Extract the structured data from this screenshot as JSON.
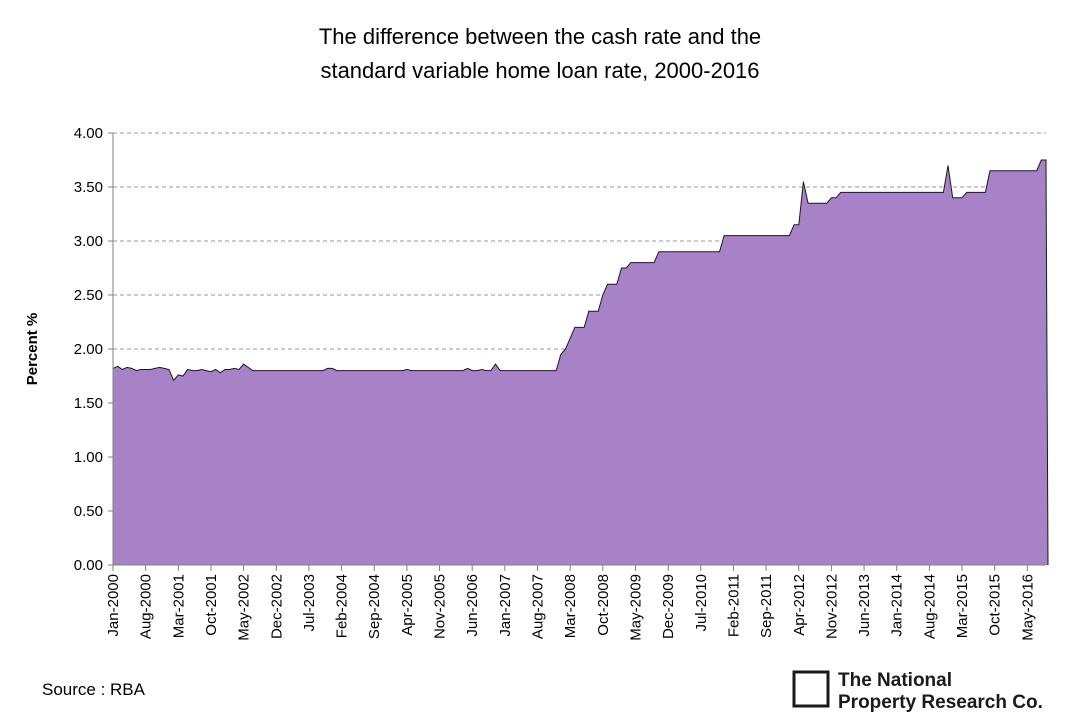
{
  "chart_data": {
    "type": "area",
    "title_lines": [
      "The difference between the cash rate and the",
      "standard variable home loan rate, 2000-2016"
    ],
    "xlabel": "",
    "ylabel": "Percent %",
    "ylim": [
      0,
      4
    ],
    "ytick_step": 0.5,
    "yticks": [
      "0.00",
      "0.50",
      "1.00",
      "1.50",
      "2.00",
      "2.50",
      "3.00",
      "3.50",
      "4.00"
    ],
    "grid": true,
    "grid_style": "dashed",
    "legend": "none",
    "x_start": "Jan-2000",
    "x_end": "Sep-2016",
    "xticks": [
      "Jan-2000",
      "Aug-2000",
      "Mar-2001",
      "Oct-2001",
      "May-2002",
      "Dec-2002",
      "Jul-2003",
      "Feb-2004",
      "Sep-2004",
      "Apr-2005",
      "Nov-2005",
      "Jun-2006",
      "Jan-2007",
      "Aug-2007",
      "Mar-2008",
      "Oct-2008",
      "May-2009",
      "Dec-2009",
      "Jul-2010",
      "Feb-2011",
      "Sep-2011",
      "Apr-2012",
      "Nov-2012",
      "Jun-2013",
      "Jan-2014",
      "Aug-2014",
      "Mar-2015",
      "Oct-2015",
      "May-2016"
    ],
    "fill_color": "#a782c6",
    "line_color": "#1a1a1a",
    "series": [
      {
        "points": [
          [
            "Jan-2000",
            1.82
          ],
          [
            "Feb-2000",
            1.84
          ],
          [
            "Mar-2000",
            1.81
          ],
          [
            "Apr-2000",
            1.83
          ],
          [
            "May-2000",
            1.82
          ],
          [
            "Jun-2000",
            1.8
          ],
          [
            "Jul-2000",
            1.81
          ],
          [
            "Aug-2000",
            1.81
          ],
          [
            "Sep-2000",
            1.81
          ],
          [
            "Oct-2000",
            1.82
          ],
          [
            "Nov-2000",
            1.83
          ],
          [
            "Dec-2000",
            1.82
          ],
          [
            "Jan-2001",
            1.81
          ],
          [
            "Feb-2001",
            1.71
          ],
          [
            "Mar-2001",
            1.76
          ],
          [
            "Apr-2001",
            1.75
          ],
          [
            "May-2001",
            1.81
          ],
          [
            "Jun-2001",
            1.8
          ],
          [
            "Jul-2001",
            1.8
          ],
          [
            "Aug-2001",
            1.81
          ],
          [
            "Sep-2001",
            1.8
          ],
          [
            "Oct-2001",
            1.79
          ],
          [
            "Nov-2001",
            1.81
          ],
          [
            "Dec-2001",
            1.78
          ],
          [
            "Jan-2002",
            1.81
          ],
          [
            "Feb-2002",
            1.81
          ],
          [
            "Mar-2002",
            1.82
          ],
          [
            "Apr-2002",
            1.81
          ],
          [
            "May-2002",
            1.86
          ],
          [
            "Jun-2002",
            1.83
          ],
          [
            "Jul-2002",
            1.8
          ],
          [
            "Oct-2003",
            1.8
          ],
          [
            "Nov-2003",
            1.82
          ],
          [
            "Dec-2003",
            1.82
          ],
          [
            "Jan-2004",
            1.8
          ],
          [
            "Mar-2005",
            1.8
          ],
          [
            "Apr-2005",
            1.81
          ],
          [
            "May-2005",
            1.8
          ],
          [
            "Apr-2006",
            1.8
          ],
          [
            "May-2006",
            1.82
          ],
          [
            "Jun-2006",
            1.8
          ],
          [
            "Jul-2006",
            1.8
          ],
          [
            "Aug-2006",
            1.81
          ],
          [
            "Sep-2006",
            1.8
          ],
          [
            "Oct-2006",
            1.8
          ],
          [
            "Nov-2006",
            1.86
          ],
          [
            "Dec-2006",
            1.8
          ],
          [
            "Dec-2007",
            1.8
          ],
          [
            "Jan-2008",
            1.95
          ],
          [
            "Feb-2008",
            2.0
          ],
          [
            "Mar-2008",
            2.1
          ],
          [
            "Apr-2008",
            2.2
          ],
          [
            "Jun-2008",
            2.2
          ],
          [
            "Jul-2008",
            2.35
          ],
          [
            "Sep-2008",
            2.35
          ],
          [
            "Oct-2008",
            2.5
          ],
          [
            "Nov-2008",
            2.6
          ],
          [
            "Jan-2009",
            2.6
          ],
          [
            "Feb-2009",
            2.75
          ],
          [
            "Mar-2009",
            2.75
          ],
          [
            "Apr-2009",
            2.8
          ],
          [
            "Jul-2009",
            2.8
          ],
          [
            "Aug-2009",
            2.8
          ],
          [
            "Sep-2009",
            2.8
          ],
          [
            "Oct-2009",
            2.9
          ],
          [
            "Nov-2010",
            2.9
          ],
          [
            "Dec-2010",
            3.05
          ],
          [
            "Feb-2012",
            3.05
          ],
          [
            "Mar-2012",
            3.15
          ],
          [
            "Apr-2012",
            3.15
          ],
          [
            "May-2012",
            3.55
          ],
          [
            "Jun-2012",
            3.35
          ],
          [
            "Oct-2012",
            3.35
          ],
          [
            "Nov-2012",
            3.4
          ],
          [
            "Dec-2012",
            3.4
          ],
          [
            "Jan-2013",
            3.45
          ],
          [
            "Nov-2014",
            3.45
          ],
          [
            "Dec-2014",
            3.7
          ],
          [
            "Jan-2015",
            3.4
          ],
          [
            "Feb-2015",
            3.4
          ],
          [
            "Mar-2015",
            3.4
          ],
          [
            "Apr-2015",
            3.45
          ],
          [
            "Aug-2015",
            3.45
          ],
          [
            "Sep-2015",
            3.65
          ],
          [
            "Jul-2016",
            3.65
          ],
          [
            "Aug-2016",
            3.75
          ],
          [
            "Sep-2016",
            3.75
          ]
        ]
      }
    ]
  },
  "source_text": "Source : RBA",
  "logo": {
    "icon": "square-frame-icon",
    "line1": "The National",
    "line2": "Property Research Co."
  }
}
